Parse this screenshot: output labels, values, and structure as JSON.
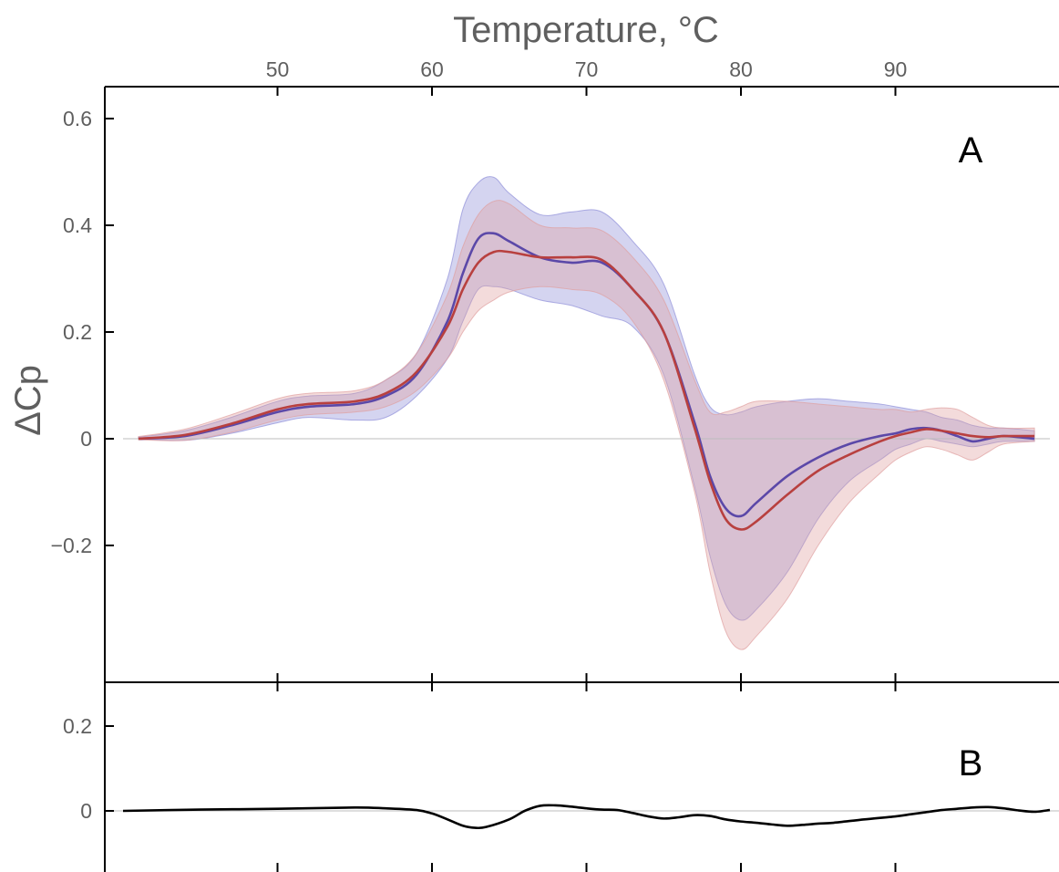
{
  "colors": {
    "series_blue": "#5b48a8",
    "series_red": "#b8403f",
    "band_blue": "#8e8ed8",
    "band_red": "#e0a0a0",
    "difference": "#000000",
    "zero_line": "#bdbdbd",
    "text": "#5f5f5f"
  },
  "chart_data": [
    {
      "panel": "A",
      "type": "line",
      "title": "",
      "xlabel": "Temperature, °C",
      "ylabel": "ΔCp",
      "panel_label": "A",
      "xlim": [
        40,
        100
      ],
      "ylim": [
        -0.45,
        0.66
      ],
      "x_ticks": [
        50,
        60,
        70,
        80,
        90
      ],
      "x_tick_labels": [
        "50",
        "60",
        "70",
        "80",
        "90"
      ],
      "y_ticks": [
        0.6,
        0.4,
        0.2,
        0,
        -0.2
      ],
      "y_tick_labels": [
        "0.6",
        "0.4",
        "0.2",
        "0",
        "−0.2"
      ],
      "grid": false,
      "zero_line": true,
      "series": [
        {
          "color": "#5b48a8",
          "band_color": "#8e8ed8",
          "x": [
            41,
            44,
            47,
            50,
            52,
            55,
            57,
            59,
            61,
            62,
            63,
            64,
            65,
            67,
            69,
            71,
            73,
            75,
            77,
            78,
            79,
            80,
            81,
            83,
            85,
            87,
            89,
            90,
            91,
            92,
            93,
            94,
            95,
            96,
            97,
            99
          ],
          "y": [
            0,
            0.005,
            0.025,
            0.05,
            0.06,
            0.065,
            0.08,
            0.12,
            0.22,
            0.31,
            0.375,
            0.385,
            0.37,
            0.34,
            0.33,
            0.33,
            0.28,
            0.2,
            0.03,
            -0.07,
            -0.13,
            -0.145,
            -0.12,
            -0.07,
            -0.035,
            -0.01,
            0.005,
            0.01,
            0.018,
            0.02,
            0.015,
            0.005,
            -0.005,
            0,
            0.005,
            0
          ],
          "lower": [
            0,
            -0.003,
            0.01,
            0.03,
            0.04,
            0.035,
            0.04,
            0.08,
            0.15,
            0.22,
            0.28,
            0.285,
            0.28,
            0.26,
            0.25,
            0.23,
            0.21,
            0.12,
            -0.09,
            -0.22,
            -0.31,
            -0.34,
            -0.32,
            -0.25,
            -0.15,
            -0.08,
            -0.04,
            -0.02,
            -0.01,
            0,
            -0.005,
            -0.01,
            -0.015,
            -0.01,
            -0.005,
            -0.005
          ],
          "upper": [
            0.003,
            0.015,
            0.04,
            0.07,
            0.08,
            0.085,
            0.11,
            0.16,
            0.3,
            0.43,
            0.48,
            0.49,
            0.46,
            0.42,
            0.425,
            0.425,
            0.37,
            0.29,
            0.12,
            0.06,
            0.045,
            0.05,
            0.06,
            0.07,
            0.075,
            0.07,
            0.065,
            0.06,
            0.055,
            0.05,
            0.04,
            0.035,
            0.025,
            0.02,
            0.02,
            0.015
          ]
        },
        {
          "color": "#b8403f",
          "band_color": "#e0a0a0",
          "x": [
            41,
            44,
            47,
            50,
            52,
            55,
            57,
            59,
            61,
            62,
            63,
            64,
            65,
            67,
            69,
            71,
            73,
            75,
            77,
            78,
            79,
            80,
            81,
            83,
            85,
            87,
            89,
            90,
            91,
            92,
            93,
            94,
            95,
            96,
            97,
            99
          ],
          "y": [
            0,
            0.007,
            0.028,
            0.055,
            0.065,
            0.07,
            0.085,
            0.125,
            0.21,
            0.28,
            0.33,
            0.35,
            0.35,
            0.34,
            0.34,
            0.335,
            0.28,
            0.2,
            0.02,
            -0.08,
            -0.15,
            -0.17,
            -0.155,
            -0.105,
            -0.06,
            -0.03,
            -0.005,
            0.005,
            0.012,
            0.018,
            0.015,
            0.01,
            0.005,
            0.003,
            0.005,
            0.005
          ],
          "lower": [
            -0.002,
            -0.003,
            0.012,
            0.035,
            0.045,
            0.05,
            0.06,
            0.09,
            0.15,
            0.2,
            0.24,
            0.26,
            0.275,
            0.285,
            0.28,
            0.27,
            0.22,
            0.11,
            -0.1,
            -0.25,
            -0.36,
            -0.395,
            -0.37,
            -0.3,
            -0.2,
            -0.12,
            -0.065,
            -0.04,
            -0.025,
            -0.015,
            -0.02,
            -0.03,
            -0.04,
            -0.025,
            -0.01,
            -0.005
          ],
          "upper": [
            0.004,
            0.018,
            0.045,
            0.075,
            0.085,
            0.09,
            0.11,
            0.16,
            0.27,
            0.36,
            0.42,
            0.445,
            0.44,
            0.4,
            0.395,
            0.39,
            0.34,
            0.26,
            0.11,
            0.05,
            0.05,
            0.06,
            0.07,
            0.07,
            0.065,
            0.06,
            0.055,
            0.055,
            0.05,
            0.055,
            0.058,
            0.055,
            0.04,
            0.025,
            0.02,
            0.02
          ]
        }
      ]
    },
    {
      "panel": "B",
      "type": "line",
      "title": "",
      "xlabel": "",
      "ylabel": "",
      "panel_label": "B",
      "xlim": [
        40,
        100
      ],
      "ylim": [
        -0.11,
        0.3
      ],
      "y_ticks": [
        0.2,
        0
      ],
      "y_tick_labels": [
        "0.2",
        "0"
      ],
      "grid": false,
      "zero_line": true,
      "series": [
        {
          "color": "#000000",
          "x": [
            40,
            45,
            50,
            55,
            57,
            59,
            60,
            61,
            62,
            62.8,
            63.5,
            65,
            66,
            67,
            68,
            69,
            70,
            71,
            72,
            73,
            74,
            75,
            76,
            77,
            78,
            79,
            80,
            81,
            82,
            83,
            84,
            85,
            86,
            88,
            90,
            91,
            92,
            93,
            94,
            95,
            96,
            97,
            98,
            99,
            100
          ],
          "y": [
            0,
            0.003,
            0.005,
            0.008,
            0.006,
            0.002,
            -0.006,
            -0.02,
            -0.035,
            -0.04,
            -0.038,
            -0.02,
            0,
            0.012,
            0.013,
            0.01,
            0.006,
            0.003,
            0.002,
            -0.005,
            -0.013,
            -0.018,
            -0.015,
            -0.01,
            -0.012,
            -0.02,
            -0.025,
            -0.028,
            -0.032,
            -0.035,
            -0.033,
            -0.03,
            -0.028,
            -0.02,
            -0.013,
            -0.008,
            -0.003,
            0.002,
            0.005,
            0.008,
            0.009,
            0.006,
            0.001,
            -0.002,
            0.002
          ]
        }
      ]
    }
  ]
}
